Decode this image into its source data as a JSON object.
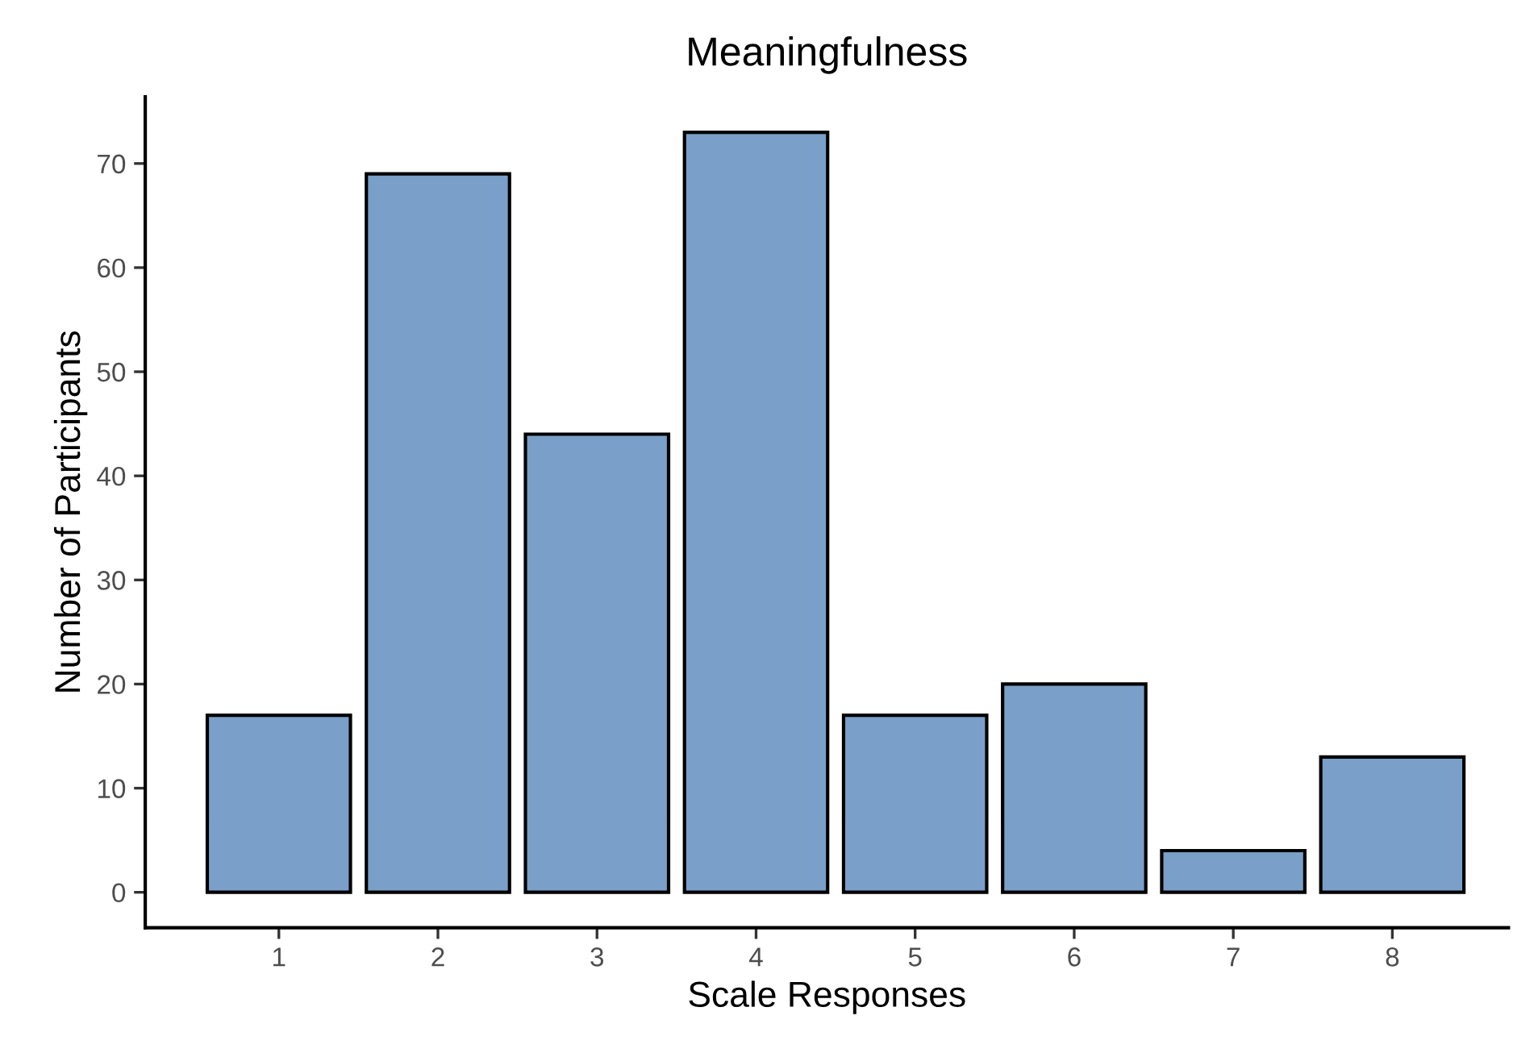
{
  "chart_data": {
    "type": "bar",
    "title": "Meaningfulness",
    "xlabel": "Scale Responses",
    "ylabel": "Number of Participants",
    "categories": [
      "1",
      "2",
      "3",
      "4",
      "5",
      "6",
      "7",
      "8"
    ],
    "values": [
      17,
      69,
      44,
      73,
      17,
      20,
      4,
      13
    ],
    "color": "#7a9fc8",
    "ylim": [
      -3.4,
      76.4
    ],
    "yticks": [
      0,
      10,
      20,
      30,
      40,
      50,
      60,
      70
    ],
    "grid": false
  }
}
